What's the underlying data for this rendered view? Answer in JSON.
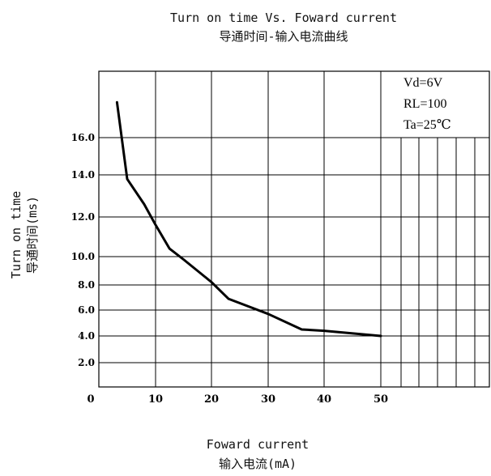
{
  "chart_data": {
    "type": "line",
    "title": [
      "Turn on time Vs. Foward current",
      "导通时间-输入电流曲线"
    ],
    "xlabel": [
      "Foward current",
      "输入电流(mA)"
    ],
    "ylabel": [
      "Turn on time",
      "导通时间(ms)"
    ],
    "x_ticks": [
      "0",
      "10",
      "20",
      "30",
      "40",
      "50"
    ],
    "y_ticks": [
      "2.0",
      "4.0",
      "6.0",
      "8.0",
      "10.0",
      "12.0",
      "14.0",
      "16.0"
    ],
    "conditions": [
      "Vd=6V",
      "RL=100",
      "Ta=25℃"
    ],
    "grid": true,
    "series": [
      {
        "x": [
          3.2,
          5,
          8,
          10,
          12.5,
          15,
          20,
          23,
          30,
          36,
          40,
          50
        ],
        "y": [
          17.9,
          13.8,
          12.6,
          11.6,
          10.4,
          9.8,
          8.2,
          6.9,
          5.7,
          4.5,
          4.4,
          4.0
        ]
      }
    ]
  }
}
